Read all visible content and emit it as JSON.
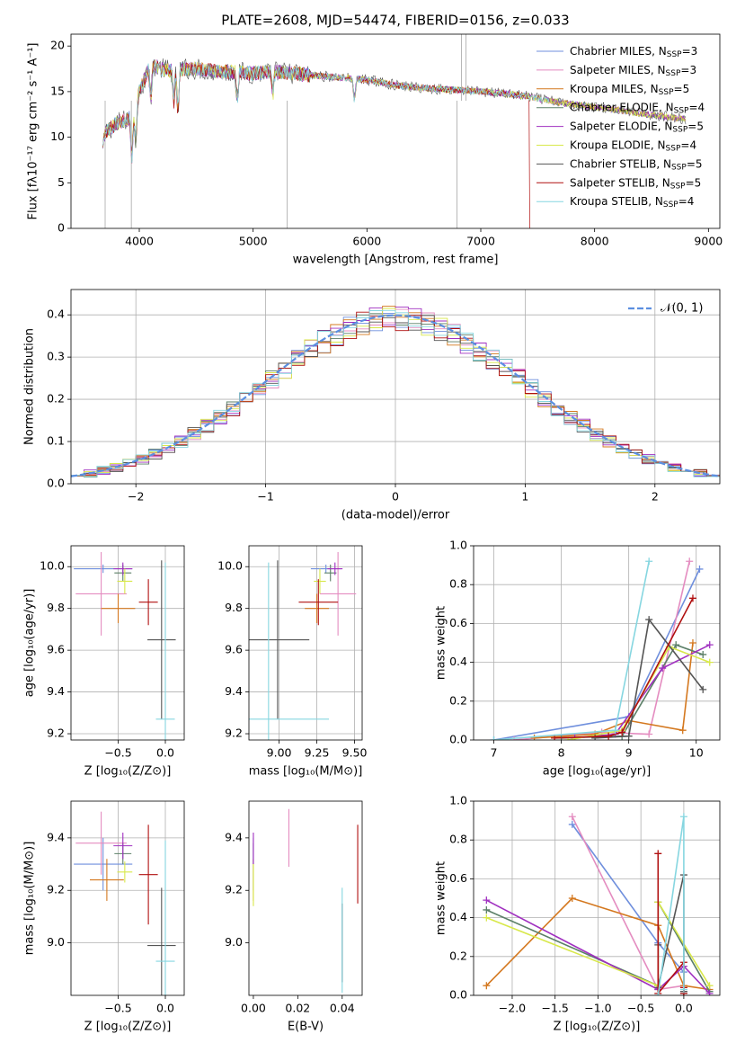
{
  "colors": {
    "Chabrier MILES": "#6f8fdd",
    "Salpeter MILES": "#e48cc0",
    "Kroupa MILES": "#d4781f",
    "Chabrier ELODIE": "#5b7f67",
    "Salpeter ELODIE": "#a030c0",
    "Kroupa ELODIE": "#d8e84a",
    "Chabrier STELIB": "#555555",
    "Salpeter STELIB": "#b01010",
    "Kroupa STELIB": "#86d6e0"
  },
  "chart_data": [
    {
      "id": "spectrum",
      "type": "line",
      "title": "PLATE=2608, MJD=54474, FIBERID=0156, z=0.033",
      "xlabel": "wavelength [Angstrom, rest frame]",
      "ylabel": "Flux [fλ10⁻¹⁷ erg cm⁻² s⁻¹ A⁻¹]",
      "xlim": [
        3400,
        9100
      ],
      "ylim": [
        0,
        21.3
      ],
      "xticks": [
        4000,
        5000,
        6000,
        7000,
        8000,
        9000
      ],
      "yticks": [
        0,
        5,
        10,
        15,
        20
      ],
      "grid": false,
      "legend_position": "top-right",
      "legend": [
        "Chabrier MILES, N_SSP=3",
        "Salpeter MILES, N_SSP=3",
        "Kroupa MILES, N_SSP=5",
        "Chabrier ELODIE, N_SSP=4",
        "Salpeter ELODIE, N_SSP=5",
        "Kroupa ELODIE, N_SSP=4",
        "Chabrier STELIB, N_SSP=5",
        "Salpeter STELIB, N_SSP=5",
        "Kroupa STELIB, N_SSP=4"
      ],
      "continuum": {
        "x": [
          3680,
          3700,
          3800,
          3900,
          3950,
          4000,
          4050,
          4100,
          4200,
          4300,
          4400,
          4500,
          4700,
          5000,
          5200,
          5500,
          5800,
          6000,
          6300,
          6600,
          6900,
          7200,
          7400,
          7600,
          7800,
          8000,
          8200,
          8400,
          8600,
          8800
        ],
        "y": [
          8.5,
          10.5,
          11.5,
          12,
          12.5,
          15,
          16.5,
          18,
          17.5,
          17.3,
          17.5,
          17.5,
          17.2,
          17,
          17.2,
          16.8,
          16.5,
          16.3,
          15.6,
          15.3,
          15.1,
          14.8,
          14.5,
          14,
          13.6,
          13.3,
          13,
          12.6,
          12.3,
          12
        ]
      },
      "absorption_lines": [
        {
          "x": 3934,
          "depth": 5
        },
        {
          "x": 3969,
          "depth": 4
        },
        {
          "x": 4101,
          "depth": 4
        },
        {
          "x": 4304,
          "depth": 3.5
        },
        {
          "x": 4340,
          "depth": 5
        },
        {
          "x": 4861,
          "depth": 3
        },
        {
          "x": 5175,
          "depth": 2.5
        },
        {
          "x": 5890,
          "depth": 2.5
        }
      ],
      "spikes": [
        {
          "x": 3700,
          "y": 0
        },
        {
          "x": 3930,
          "y": 0
        },
        {
          "x": 5300,
          "y": 0
        },
        {
          "x": 6790,
          "y": 0
        },
        {
          "x": 6830,
          "y": 21.3
        },
        {
          "x": 6870,
          "y": 21.3
        }
      ],
      "red_cutoff": {
        "x": 7430,
        "y": 0
      }
    },
    {
      "id": "residuals",
      "type": "step",
      "xlabel": "(data-model)/error",
      "ylabel": "Normed distribution",
      "xlim": [
        -2.5,
        2.5
      ],
      "ylim": [
        0,
        0.46
      ],
      "xticks": [
        -2,
        -1,
        0,
        1,
        2
      ],
      "xtick_labels": [
        "−2",
        "−1",
        "0",
        "1",
        "2"
      ],
      "yticks": [
        0.0,
        0.1,
        0.2,
        0.3,
        0.4
      ],
      "ytick_labels": [
        "0.0",
        "0.1",
        "0.2",
        "0.3",
        "0.4"
      ],
      "grid": true,
      "bin_width": 0.1,
      "legend_label": "𝒩(0, 1)",
      "legend_position": "top-right"
    },
    {
      "id": "age-vs-z",
      "type": "errorbar",
      "xlabel": "Z [log₁₀(Z/Z⊙)]",
      "ylabel": "age [log₁₀(age/yr)]",
      "xlim": [
        -1.0,
        0.2
      ],
      "ylim": [
        9.17,
        10.1
      ],
      "xticks": [
        -0.5,
        0.0
      ],
      "xtick_labels": [
        "−0.5",
        "0.0"
      ],
      "yticks": [
        9.2,
        9.4,
        9.6,
        9.8,
        10.0
      ],
      "ytick_labels": [
        "9.2",
        "9.4",
        "9.6",
        "9.8",
        "10.0"
      ],
      "grid": true,
      "points": [
        {
          "model": "Chabrier MILES",
          "x": -0.66,
          "xerr": 0.31,
          "y": 9.99,
          "yerr": 0.02
        },
        {
          "model": "Salpeter MILES",
          "x": -0.68,
          "xerr": 0.27,
          "y": 9.87,
          "yerr": 0.2
        },
        {
          "model": "Kroupa MILES",
          "x": -0.5,
          "xerr": 0.18,
          "y": 9.8,
          "yerr": 0.07
        },
        {
          "model": "Chabrier ELODIE",
          "x": -0.45,
          "xerr": 0.09,
          "y": 9.97,
          "yerr": 0.04
        },
        {
          "model": "Salpeter ELODIE",
          "x": -0.45,
          "xerr": 0.1,
          "y": 9.99,
          "yerr": 0.03
        },
        {
          "model": "Kroupa ELODIE",
          "x": -0.43,
          "xerr": 0.08,
          "y": 9.93,
          "yerr": 0.06
        },
        {
          "model": "Chabrier STELIB",
          "x": -0.04,
          "xerr": 0.15,
          "y": 9.65,
          "yerr": 0.38
        },
        {
          "model": "Salpeter STELIB",
          "x": -0.18,
          "xerr": 0.1,
          "y": 9.83,
          "yerr": 0.11
        },
        {
          "model": "Kroupa STELIB",
          "x": 0.0,
          "xerr": 0.1,
          "y": 9.27,
          "yerr": 0.75
        }
      ]
    },
    {
      "id": "age-vs-mass",
      "type": "errorbar",
      "xlabel": "mass [log₁₀(M/M⊙)]",
      "ylabel": "",
      "xlim": [
        8.8,
        9.55
      ],
      "ylim": [
        9.17,
        10.1
      ],
      "xticks": [
        9.0,
        9.25,
        9.5
      ],
      "xtick_labels": [
        "9.00",
        "9.25",
        "9.50"
      ],
      "yticks": [
        9.2,
        9.4,
        9.6,
        9.8,
        10.0
      ],
      "ytick_labels": [
        "9.2",
        "9.4",
        "9.6",
        "9.8",
        "10.0"
      ],
      "grid": true,
      "points": [
        {
          "model": "Chabrier MILES",
          "x": 9.31,
          "xerr": 0.1,
          "y": 9.99,
          "yerr": 0.02
        },
        {
          "model": "Salpeter MILES",
          "x": 9.39,
          "xerr": 0.12,
          "y": 9.87,
          "yerr": 0.2
        },
        {
          "model": "Kroupa MILES",
          "x": 9.25,
          "xerr": 0.08,
          "y": 9.8,
          "yerr": 0.07
        },
        {
          "model": "Chabrier ELODIE",
          "x": 9.34,
          "xerr": 0.04,
          "y": 9.97,
          "yerr": 0.04
        },
        {
          "model": "Salpeter ELODIE",
          "x": 9.37,
          "xerr": 0.05,
          "y": 9.99,
          "yerr": 0.03
        },
        {
          "model": "Kroupa ELODIE",
          "x": 9.27,
          "xerr": 0.04,
          "y": 9.93,
          "yerr": 0.06
        },
        {
          "model": "Chabrier STELIB",
          "x": 8.99,
          "xerr": 0.21,
          "y": 9.65,
          "yerr": 0.38
        },
        {
          "model": "Salpeter STELIB",
          "x": 9.26,
          "xerr": 0.13,
          "y": 9.83,
          "yerr": 0.11
        },
        {
          "model": "Kroupa STELIB",
          "x": 8.93,
          "xerr": 0.4,
          "y": 9.27,
          "yerr": 0.75
        }
      ]
    },
    {
      "id": "mass-weight-vs-age",
      "type": "line",
      "xlabel": "age [log₁₀(age/yr)]",
      "ylabel": "mass weight",
      "xlim": [
        6.7,
        10.35
      ],
      "ylim": [
        0,
        1.0
      ],
      "xticks": [
        7,
        8,
        9,
        10
      ],
      "yticks": [
        0.0,
        0.2,
        0.4,
        0.6,
        0.8,
        1.0
      ],
      "ytick_labels": [
        "0.0",
        "0.2",
        "0.4",
        "0.6",
        "0.8",
        "1.0"
      ],
      "grid": true,
      "series": [
        {
          "model": "Chabrier MILES",
          "x": [
            7.0,
            9.0,
            10.05
          ],
          "y": [
            0.0,
            0.12,
            0.88
          ]
        },
        {
          "model": "Salpeter MILES",
          "x": [
            7.3,
            8.6,
            9.3,
            9.9
          ],
          "y": [
            0.0,
            0.04,
            0.03,
            0.92
          ]
        },
        {
          "model": "Kroupa MILES",
          "x": [
            7.6,
            8.5,
            9.0,
            9.8,
            9.95
          ],
          "y": [
            0.01,
            0.03,
            0.1,
            0.05,
            0.5
          ]
        },
        {
          "model": "Chabrier ELODIE",
          "x": [
            8.0,
            8.9,
            9.7,
            10.1
          ],
          "y": [
            0.01,
            0.02,
            0.49,
            0.44
          ]
        },
        {
          "model": "Salpeter ELODIE",
          "x": [
            8.2,
            8.8,
            9.5,
            10.2
          ],
          "y": [
            0.01,
            0.03,
            0.37,
            0.49
          ]
        },
        {
          "model": "Kroupa ELODIE",
          "x": [
            8.1,
            8.9,
            9.6,
            10.2
          ],
          "y": [
            0.0,
            0.05,
            0.48,
            0.4
          ]
        },
        {
          "model": "Chabrier STELIB",
          "x": [
            8.5,
            9.0,
            9.3,
            10.1
          ],
          "y": [
            0.01,
            0.02,
            0.62,
            0.26
          ]
        },
        {
          "model": "Salpeter STELIB",
          "x": [
            7.9,
            8.7,
            8.9,
            9.95
          ],
          "y": [
            0.01,
            0.02,
            0.04,
            0.73
          ]
        },
        {
          "model": "Kroupa STELIB",
          "x": [
            7.0,
            8.8,
            9.3
          ],
          "y": [
            0.0,
            0.05,
            0.92
          ]
        }
      ]
    },
    {
      "id": "mass-vs-z",
      "type": "errorbar",
      "xlabel": "Z [log₁₀(Z/Z⊙)]",
      "ylabel": "mass [log₁₀(M/M⊙)]",
      "xlim": [
        -1.0,
        0.2
      ],
      "ylim": [
        8.8,
        9.54
      ],
      "xticks": [
        -0.5,
        0.0
      ],
      "xtick_labels": [
        "−0.5",
        "0.0"
      ],
      "yticks": [
        9.0,
        9.2,
        9.4
      ],
      "ytick_labels": [
        "9.0",
        "9.2",
        "9.4"
      ],
      "grid": true,
      "points": [
        {
          "model": "Chabrier MILES",
          "x": -0.66,
          "xerr": 0.31,
          "y": 9.3,
          "yerr": 0.1
        },
        {
          "model": "Salpeter MILES",
          "x": -0.68,
          "xerr": 0.27,
          "y": 9.38,
          "yerr": 0.12
        },
        {
          "model": "Kroupa MILES",
          "x": -0.62,
          "xerr": 0.18,
          "y": 9.24,
          "yerr": 0.08
        },
        {
          "model": "Chabrier ELODIE",
          "x": -0.45,
          "xerr": 0.09,
          "y": 9.34,
          "yerr": 0.04
        },
        {
          "model": "Salpeter ELODIE",
          "x": -0.45,
          "xerr": 0.1,
          "y": 9.37,
          "yerr": 0.05
        },
        {
          "model": "Kroupa ELODIE",
          "x": -0.43,
          "xerr": 0.08,
          "y": 9.27,
          "yerr": 0.04
        },
        {
          "model": "Chabrier STELIB",
          "x": -0.04,
          "xerr": 0.15,
          "y": 8.99,
          "yerr": 0.22
        },
        {
          "model": "Salpeter STELIB",
          "x": -0.18,
          "xerr": 0.1,
          "y": 9.26,
          "yerr": 0.19
        },
        {
          "model": "Kroupa STELIB",
          "x": 0.0,
          "xerr": 0.1,
          "y": 8.93,
          "yerr": 0.46
        }
      ]
    },
    {
      "id": "mass-vs-ebv",
      "type": "errorbar",
      "xlabel": "E(B-V)",
      "ylabel": "",
      "xlim": [
        -0.002,
        0.049
      ],
      "ylim": [
        8.8,
        9.54
      ],
      "xticks": [
        0.0,
        0.02,
        0.04
      ],
      "xtick_labels": [
        "0.00",
        "0.02",
        "0.04"
      ],
      "yticks": [
        9.0,
        9.2,
        9.4
      ],
      "ytick_labels": [
        "9.0",
        "9.2",
        "9.4"
      ],
      "grid": false,
      "points": [
        {
          "model": "Chabrier MILES",
          "x": 0.0,
          "xerr": 0,
          "y": 9.3,
          "yerr": 0.1
        },
        {
          "model": "Salpeter MILES",
          "x": 0.016,
          "xerr": 0,
          "y": 9.4,
          "yerr": 0.11
        },
        {
          "model": "Kroupa MILES",
          "x": 0.0,
          "xerr": 0,
          "y": 9.24,
          "yerr": 0.08
        },
        {
          "model": "Chabrier ELODIE",
          "x": 0.0,
          "xerr": 0,
          "y": 9.34,
          "yerr": 0.04
        },
        {
          "model": "Salpeter ELODIE",
          "x": 0.0,
          "xerr": 0,
          "y": 9.36,
          "yerr": 0.06
        },
        {
          "model": "Kroupa ELODIE",
          "x": 0.0,
          "xerr": 0,
          "y": 9.22,
          "yerr": 0.08
        },
        {
          "model": "Chabrier STELIB",
          "x": 0.04,
          "xerr": 0,
          "y": 9.0,
          "yerr": 0.15
        },
        {
          "model": "Salpeter STELIB",
          "x": 0.047,
          "xerr": 0,
          "y": 9.3,
          "yerr": 0.15
        },
        {
          "model": "Kroupa STELIB",
          "x": 0.04,
          "xerr": 0,
          "y": 9.01,
          "yerr": 0.2
        }
      ]
    },
    {
      "id": "mass-weight-vs-z",
      "type": "line",
      "xlabel": "Z [log₁₀(Z/Z⊙)]",
      "ylabel": "mass weight",
      "xlim": [
        -2.45,
        0.42
      ],
      "ylim": [
        0,
        1.0
      ],
      "xticks": [
        -2.0,
        -1.5,
        -1.0,
        -0.5,
        0.0
      ],
      "xtick_labels": [
        "−2.0",
        "−1.5",
        "−1.0",
        "−0.5",
        "0.0"
      ],
      "yticks": [
        0.0,
        0.2,
        0.4,
        0.6,
        0.8,
        1.0
      ],
      "ytick_labels": [
        "0.0",
        "0.2",
        "0.4",
        "0.6",
        "0.8",
        "1.0"
      ],
      "grid": true,
      "series": [
        {
          "model": "Chabrier MILES",
          "x": [
            -1.3,
            -0.3,
            0.0
          ],
          "y": [
            0.88,
            0.27,
            0.12
          ]
        },
        {
          "model": "Salpeter MILES",
          "x": [
            -1.3,
            -0.3,
            0.0
          ],
          "y": [
            0.92,
            0.03,
            0.05
          ]
        },
        {
          "model": "Kroupa MILES",
          "x": [
            -2.3,
            -1.3,
            -0.3,
            0.0,
            0.3
          ],
          "y": [
            0.05,
            0.5,
            0.36,
            0.05,
            0.03
          ]
        },
        {
          "model": "Chabrier ELODIE",
          "x": [
            -2.3,
            -0.3,
            -0.3,
            0.3
          ],
          "y": [
            0.44,
            0.05,
            0.48,
            0.02
          ]
        },
        {
          "model": "Salpeter ELODIE",
          "x": [
            -2.3,
            -0.3,
            0.0,
            0.3
          ],
          "y": [
            0.49,
            0.03,
            0.15,
            0.01
          ]
        },
        {
          "model": "Kroupa ELODIE",
          "x": [
            -2.3,
            -0.3,
            -0.3,
            0.3
          ],
          "y": [
            0.4,
            0.05,
            0.48,
            0.05
          ]
        },
        {
          "model": "Chabrier STELIB",
          "x": [
            -0.3,
            -0.3,
            0.0,
            0.0,
            0.0
          ],
          "y": [
            0.26,
            0.04,
            0.62,
            0.02,
            0.01
          ]
        },
        {
          "model": "Salpeter STELIB",
          "x": [
            -0.3,
            -0.3,
            0.0,
            0.0,
            0.0
          ],
          "y": [
            0.73,
            0.01,
            0.17,
            0.04,
            0.01
          ]
        },
        {
          "model": "Kroupa STELIB",
          "x": [
            -0.3,
            0.0,
            0.0
          ],
          "y": [
            0.0,
            0.92,
            0.03
          ]
        }
      ]
    }
  ]
}
